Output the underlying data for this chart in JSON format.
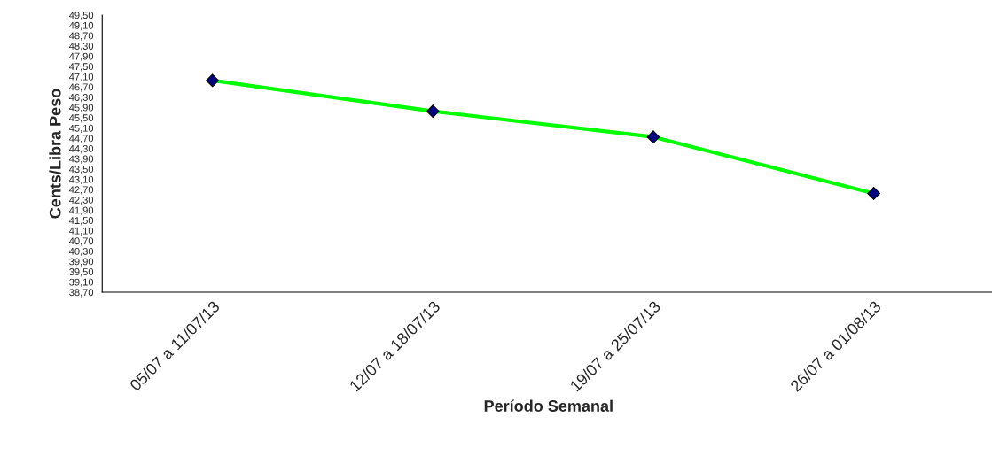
{
  "chart_data": {
    "type": "line",
    "xlabel": "Período Semanal",
    "ylabel": "Cents/Libra Peso",
    "categories": [
      "05/07 a 11/07/13",
      "12/07 a 18/07/13",
      "19/07 a 25/07/13",
      "26/07 a 01/08/13"
    ],
    "series": [
      {
        "color": "#00ff00",
        "values": [
          46.95,
          45.75,
          44.75,
          42.55
        ]
      }
    ],
    "marker": "diamond",
    "line_style": "solid",
    "grid": false,
    "legend": false,
    "ylim": [
      38.7,
      49.5
    ],
    "yticks": [
      {
        "value": 38.7,
        "label": "38,70"
      },
      {
        "value": 39.1,
        "label": "39,10"
      },
      {
        "value": 39.5,
        "label": "39,50"
      },
      {
        "value": 39.9,
        "label": "39,90"
      },
      {
        "value": 40.3,
        "label": "40,30"
      },
      {
        "value": 40.7,
        "label": "40,70"
      },
      {
        "value": 41.1,
        "label": "41,10"
      },
      {
        "value": 41.5,
        "label": "41,50"
      },
      {
        "value": 41.9,
        "label": "41,90"
      },
      {
        "value": 42.3,
        "label": "42,30"
      },
      {
        "value": 42.7,
        "label": "42,70"
      },
      {
        "value": 43.1,
        "label": "43,10"
      },
      {
        "value": 43.5,
        "label": "43,50"
      },
      {
        "value": 43.9,
        "label": "43,90"
      },
      {
        "value": 44.3,
        "label": "44,30"
      },
      {
        "value": 44.7,
        "label": "44,70"
      },
      {
        "value": 45.1,
        "label": "45,10"
      },
      {
        "value": 45.5,
        "label": "45,50"
      },
      {
        "value": 45.9,
        "label": "45,90"
      },
      {
        "value": 46.3,
        "label": "46,30"
      },
      {
        "value": 46.7,
        "label": "46,70"
      },
      {
        "value": 47.1,
        "label": "47,10"
      },
      {
        "value": 47.5,
        "label": "47,50"
      },
      {
        "value": 47.9,
        "label": "47,90"
      },
      {
        "value": 48.3,
        "label": "48,30"
      },
      {
        "value": 48.7,
        "label": "48,70"
      },
      {
        "value": 49.1,
        "label": "49,10"
      },
      {
        "value": 49.5,
        "label": "49,50"
      }
    ]
  }
}
